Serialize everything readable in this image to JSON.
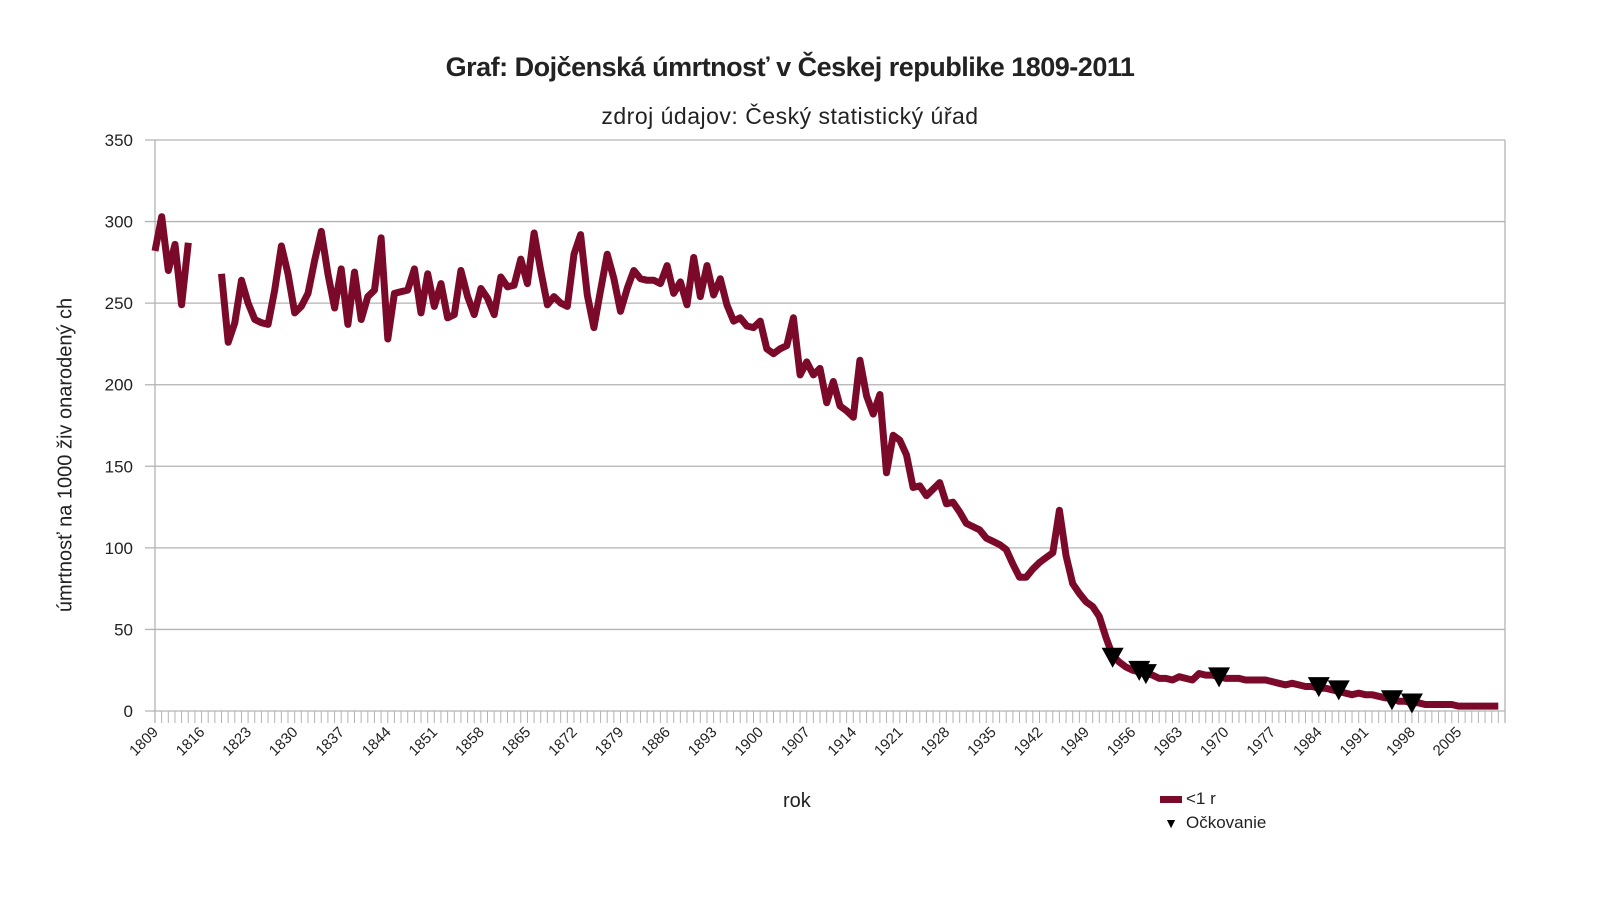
{
  "chart_data": {
    "type": "line",
    "title": "Graf: Dojčenská úmrtnosť v Českej republike 1809-2011",
    "subtitle": "zdroj údajov: Český statistický úřad",
    "xlabel": "rok",
    "ylabel": "úmrtnosť na 1000 živonarodených",
    "ylabel_display": "úmrtnosť na 1000 živ onarodený ch",
    "xlim": [
      1809,
      2011
    ],
    "ylim": [
      0,
      350
    ],
    "yticks": [
      0,
      50,
      100,
      150,
      200,
      250,
      300,
      350
    ],
    "xtick_labels": [
      "1809",
      "1816",
      "1823",
      "1830",
      "1837",
      "1844",
      "1851",
      "1858",
      "1865",
      "1872",
      "1879",
      "1886",
      "1893",
      "1900",
      "1907",
      "1914",
      "1921",
      "1928",
      "1935",
      "1942",
      "1949",
      "1956",
      "1963",
      "1970",
      "1977",
      "1984",
      "1991",
      "1998",
      "2005"
    ],
    "grid": true,
    "legend_position": "bottom-right",
    "series": [
      {
        "name": "<1 r",
        "color": "#7b0a2a",
        "segments": [
          [
            [
              1809,
              282
            ],
            [
              1810,
              303
            ],
            [
              1811,
              270
            ],
            [
              1812,
              286
            ],
            [
              1813,
              249
            ],
            [
              1814,
              287
            ]
          ],
          [
            [
              1819,
              268
            ],
            [
              1820,
              226
            ],
            [
              1821,
              238
            ],
            [
              1822,
              264
            ],
            [
              1823,
              250
            ],
            [
              1824,
              240
            ],
            [
              1825,
              238
            ],
            [
              1826,
              237
            ],
            [
              1827,
              258
            ],
            [
              1828,
              285
            ],
            [
              1829,
              268
            ],
            [
              1830,
              244
            ],
            [
              1831,
              248
            ],
            [
              1832,
              256
            ],
            [
              1833,
              276
            ],
            [
              1834,
              294
            ],
            [
              1835,
              268
            ],
            [
              1836,
              247
            ],
            [
              1837,
              271
            ],
            [
              1838,
              237
            ],
            [
              1839,
              269
            ],
            [
              1840,
              240
            ],
            [
              1841,
              254
            ],
            [
              1842,
              258
            ],
            [
              1843,
              290
            ],
            [
              1844,
              228
            ],
            [
              1845,
              256
            ],
            [
              1846,
              257
            ],
            [
              1847,
              258
            ],
            [
              1848,
              271
            ],
            [
              1849,
              244
            ],
            [
              1850,
              268
            ],
            [
              1851,
              248
            ],
            [
              1852,
              262
            ],
            [
              1853,
              241
            ],
            [
              1854,
              243
            ],
            [
              1855,
              270
            ],
            [
              1856,
              254
            ],
            [
              1857,
              243
            ],
            [
              1858,
              259
            ],
            [
              1859,
              253
            ],
            [
              1860,
              243
            ],
            [
              1861,
              266
            ],
            [
              1862,
              260
            ],
            [
              1863,
              261
            ],
            [
              1864,
              277
            ],
            [
              1865,
              262
            ],
            [
              1866,
              293
            ],
            [
              1867,
              270
            ],
            [
              1868,
              249
            ],
            [
              1869,
              254
            ],
            [
              1870,
              250
            ],
            [
              1871,
              248
            ],
            [
              1872,
              280
            ],
            [
              1873,
              292
            ],
            [
              1874,
              255
            ],
            [
              1875,
              235
            ],
            [
              1876,
              258
            ],
            [
              1877,
              280
            ],
            [
              1878,
              265
            ],
            [
              1879,
              245
            ],
            [
              1880,
              259
            ],
            [
              1881,
              270
            ],
            [
              1882,
              265
            ],
            [
              1883,
              264
            ],
            [
              1884,
              264
            ],
            [
              1885,
              262
            ],
            [
              1886,
              273
            ],
            [
              1887,
              256
            ],
            [
              1888,
              263
            ],
            [
              1889,
              249
            ],
            [
              1890,
              278
            ],
            [
              1891,
              254
            ],
            [
              1892,
              273
            ],
            [
              1893,
              255
            ],
            [
              1894,
              265
            ],
            [
              1895,
              249
            ],
            [
              1896,
              239
            ],
            [
              1897,
              241
            ],
            [
              1898,
              236
            ],
            [
              1899,
              235
            ],
            [
              1900,
              239
            ],
            [
              1901,
              222
            ],
            [
              1902,
              219
            ],
            [
              1903,
              222
            ],
            [
              1904,
              224
            ],
            [
              1905,
              241
            ],
            [
              1906,
              206
            ],
            [
              1907,
              214
            ],
            [
              1908,
              206
            ],
            [
              1909,
              210
            ],
            [
              1910,
              189
            ],
            [
              1911,
              202
            ],
            [
              1912,
              187
            ],
            [
              1913,
              184
            ],
            [
              1914,
              180
            ],
            [
              1915,
              215
            ],
            [
              1916,
              193
            ],
            [
              1917,
              182
            ],
            [
              1918,
              194
            ],
            [
              1919,
              146
            ],
            [
              1920,
              169
            ],
            [
              1921,
              166
            ],
            [
              1922,
              157
            ],
            [
              1923,
              137
            ],
            [
              1924,
              138
            ],
            [
              1925,
              132
            ],
            [
              1926,
              136
            ],
            [
              1927,
              140
            ],
            [
              1928,
              127
            ],
            [
              1929,
              128
            ],
            [
              1930,
              122
            ],
            [
              1931,
              115
            ],
            [
              1932,
              113
            ],
            [
              1933,
              111
            ],
            [
              1934,
              106
            ],
            [
              1935,
              104
            ],
            [
              1936,
              102
            ],
            [
              1937,
              99
            ],
            [
              1938,
              90
            ],
            [
              1939,
              82
            ],
            [
              1940,
              82
            ],
            [
              1941,
              87
            ],
            [
              1942,
              91
            ],
            [
              1943,
              94
            ],
            [
              1944,
              97
            ],
            [
              1945,
              123
            ],
            [
              1946,
              95
            ],
            [
              1947,
              78
            ],
            [
              1948,
              72
            ],
            [
              1949,
              67
            ],
            [
              1950,
              64
            ],
            [
              1951,
              58
            ],
            [
              1952,
              45
            ],
            [
              1953,
              34
            ],
            [
              1954,
              30
            ],
            [
              1955,
              27
            ],
            [
              1956,
              25
            ],
            [
              1957,
              24
            ],
            [
              1958,
              23
            ],
            [
              1959,
              22
            ],
            [
              1960,
              20
            ],
            [
              1961,
              20
            ],
            [
              1962,
              19
            ],
            [
              1963,
              21
            ],
            [
              1964,
              20
            ],
            [
              1965,
              19
            ],
            [
              1966,
              23
            ],
            [
              1967,
              22
            ],
            [
              1968,
              22
            ],
            [
              1969,
              21
            ],
            [
              1970,
              20
            ],
            [
              1971,
              20
            ],
            [
              1972,
              20
            ],
            [
              1973,
              19
            ],
            [
              1974,
              19
            ],
            [
              1975,
              19
            ],
            [
              1976,
              19
            ],
            [
              1977,
              18
            ],
            [
              1978,
              17
            ],
            [
              1979,
              16
            ],
            [
              1980,
              17
            ],
            [
              1981,
              16
            ],
            [
              1982,
              15
            ],
            [
              1983,
              15
            ],
            [
              1984,
              14
            ],
            [
              1985,
              14
            ],
            [
              1986,
              13
            ],
            [
              1987,
              12
            ],
            [
              1988,
              11
            ],
            [
              1989,
              10
            ],
            [
              1990,
              11
            ],
            [
              1991,
              10
            ],
            [
              1992,
              10
            ],
            [
              1993,
              9
            ],
            [
              1994,
              8
            ],
            [
              1995,
              8
            ],
            [
              1996,
              6
            ],
            [
              1997,
              6
            ],
            [
              1998,
              5
            ],
            [
              1999,
              5
            ],
            [
              2000,
              4
            ],
            [
              2001,
              4
            ],
            [
              2002,
              4
            ],
            [
              2003,
              4
            ],
            [
              2004,
              4
            ],
            [
              2005,
              3
            ],
            [
              2006,
              3
            ],
            [
              2007,
              3
            ],
            [
              2008,
              3
            ],
            [
              2009,
              3
            ],
            [
              2010,
              3
            ],
            [
              2011,
              3
            ]
          ]
        ]
      },
      {
        "name": "Očkovanie",
        "color": "#000000",
        "marker": "triangle-down",
        "points": [
          [
            1953,
            32
          ],
          [
            1957,
            24
          ],
          [
            1958,
            22
          ],
          [
            1969,
            20
          ],
          [
            1984,
            14
          ],
          [
            1987,
            12
          ],
          [
            1995,
            6
          ],
          [
            1998,
            4
          ]
        ]
      }
    ]
  }
}
